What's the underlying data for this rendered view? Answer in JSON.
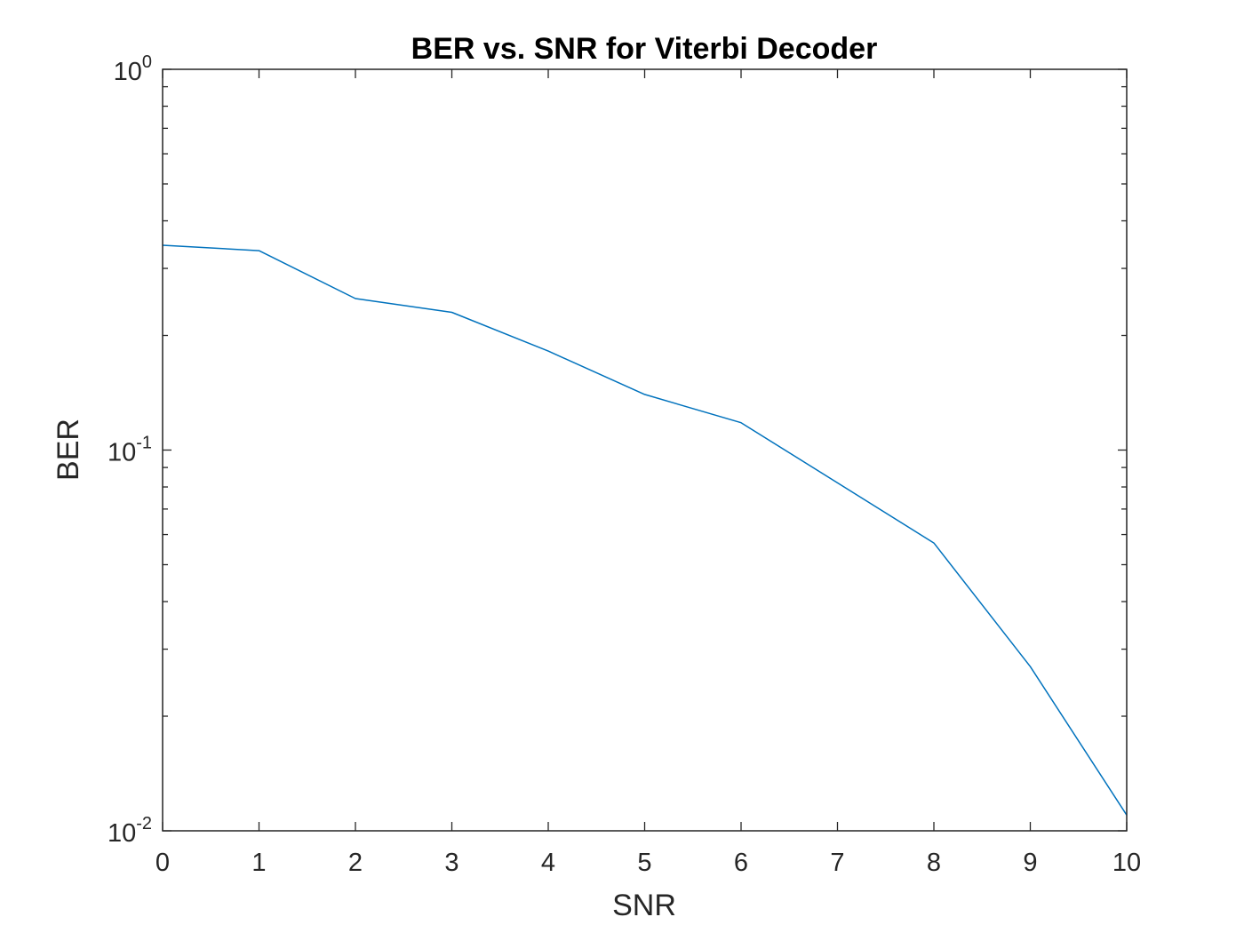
{
  "chart_data": {
    "type": "line",
    "title": "BER vs. SNR for Viterbi Decoder",
    "xlabel": "SNR",
    "ylabel": "BER",
    "xlim": [
      0,
      10
    ],
    "ylim": [
      0.01,
      1
    ],
    "yscale": "log",
    "grid": false,
    "x_ticks": [
      0,
      1,
      2,
      3,
      4,
      5,
      6,
      7,
      8,
      9,
      10
    ],
    "x_tick_labels": [
      "0",
      "1",
      "2",
      "3",
      "4",
      "5",
      "6",
      "7",
      "8",
      "9",
      "10"
    ],
    "y_ticks": [
      {
        "value": 1,
        "base": "10",
        "exponent": "0"
      },
      {
        "value": 0.1,
        "base": "10",
        "exponent": "-1"
      },
      {
        "value": 0.01,
        "base": "10",
        "exponent": "-2"
      }
    ],
    "series": [
      {
        "color": "#0072bd",
        "x": [
          0,
          1,
          2,
          3,
          4,
          5,
          6,
          7,
          8,
          9,
          10
        ],
        "y": [
          0.345,
          0.334,
          0.25,
          0.23,
          0.182,
          0.14,
          0.118,
          0.082,
          0.057,
          0.027,
          0.011
        ]
      }
    ]
  }
}
